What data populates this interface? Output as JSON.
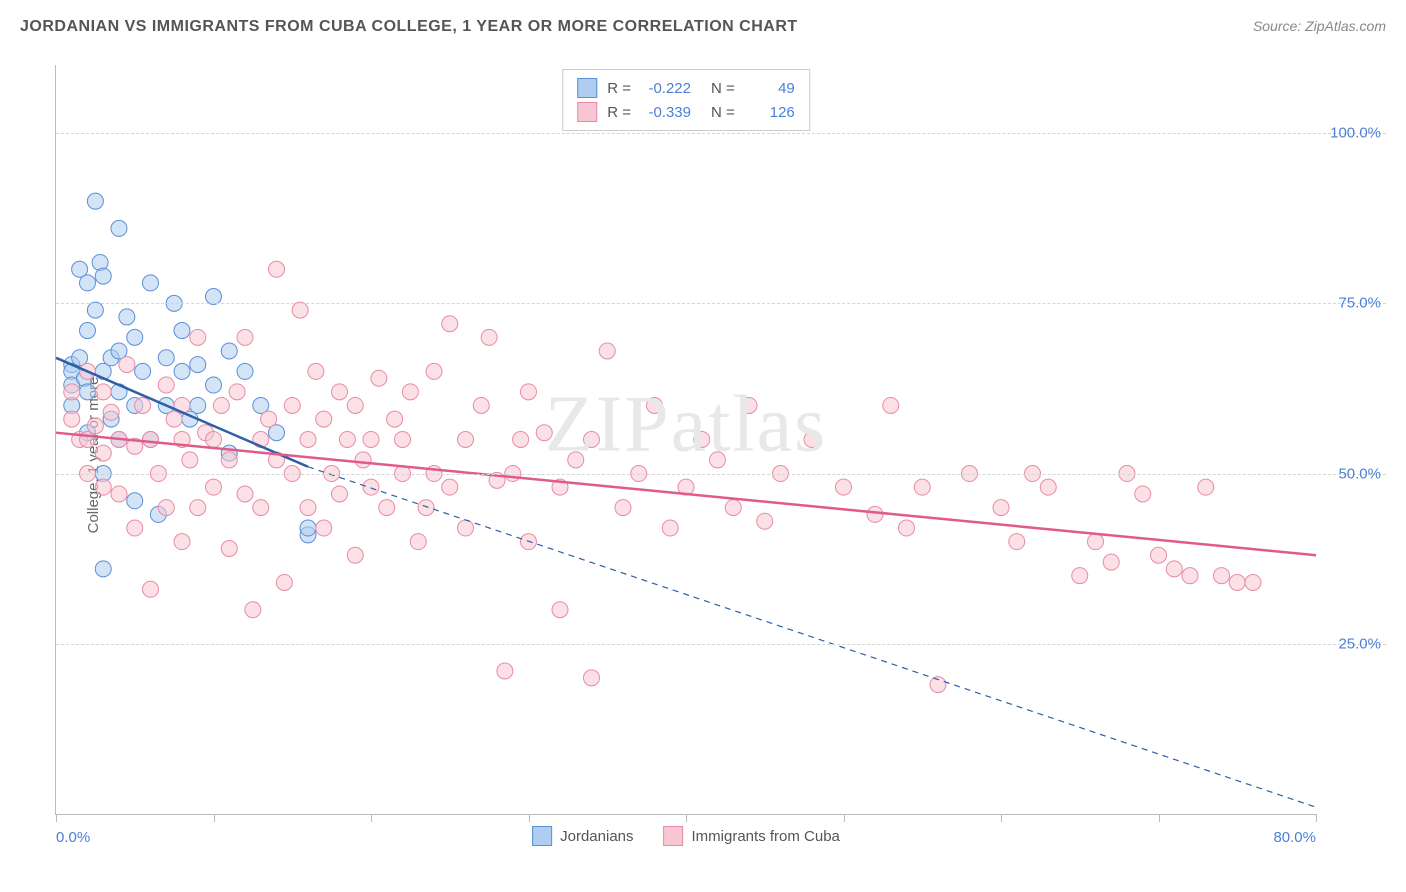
{
  "title": "JORDANIAN VS IMMIGRANTS FROM CUBA COLLEGE, 1 YEAR OR MORE CORRELATION CHART",
  "source": "Source: ZipAtlas.com",
  "watermark": "ZIPatlas",
  "y_axis_label": "College, 1 year or more",
  "chart": {
    "type": "scatter",
    "background_color": "#ffffff",
    "grid_color": "#d5d5d5",
    "axis_color": "#bbbbbb",
    "tick_label_color": "#4a7fd8",
    "xlim": [
      0,
      80
    ],
    "ylim": [
      0,
      110
    ],
    "x_ticks": [
      0,
      10,
      20,
      30,
      40,
      50,
      60,
      70,
      80
    ],
    "x_tick_labels": {
      "0": "0.0%",
      "80": "80.0%"
    },
    "y_gridlines": [
      25,
      50,
      75,
      100
    ],
    "y_tick_labels": {
      "25": "25.0%",
      "50": "50.0%",
      "75": "75.0%",
      "100": "100.0%"
    },
    "point_radius": 8,
    "point_opacity": 0.55,
    "line_width_solid": 2.5,
    "line_width_dashed": 1.2,
    "series": [
      {
        "name": "Jordanians",
        "label": "Jordanians",
        "color_fill": "#aecdf0",
        "color_stroke": "#5b8fd6",
        "color_line": "#2d5fa8",
        "R": "-0.222",
        "N": "49",
        "trend_start": [
          0,
          67
        ],
        "trend_end_solid": [
          16,
          51
        ],
        "trend_end_dashed": [
          80,
          1
        ],
        "points": [
          [
            1,
            66
          ],
          [
            1,
            65
          ],
          [
            1,
            63
          ],
          [
            1,
            60
          ],
          [
            1.5,
            67
          ],
          [
            1.5,
            80
          ],
          [
            1.8,
            64
          ],
          [
            2,
            78
          ],
          [
            2,
            71
          ],
          [
            2,
            62
          ],
          [
            2,
            56
          ],
          [
            2.5,
            90
          ],
          [
            2.5,
            74
          ],
          [
            2.8,
            81
          ],
          [
            3,
            36
          ],
          [
            3,
            50
          ],
          [
            3,
            65
          ],
          [
            3,
            79
          ],
          [
            3.5,
            58
          ],
          [
            3.5,
            67
          ],
          [
            4,
            86
          ],
          [
            4,
            68
          ],
          [
            4,
            62
          ],
          [
            4,
            55
          ],
          [
            4.5,
            73
          ],
          [
            5,
            70
          ],
          [
            5,
            46
          ],
          [
            5,
            60
          ],
          [
            5.5,
            65
          ],
          [
            6,
            78
          ],
          [
            6,
            55
          ],
          [
            6.5,
            44
          ],
          [
            7,
            67
          ],
          [
            7,
            60
          ],
          [
            7.5,
            75
          ],
          [
            8,
            71
          ],
          [
            8,
            65
          ],
          [
            8.5,
            58
          ],
          [
            9,
            66
          ],
          [
            9,
            60
          ],
          [
            10,
            76
          ],
          [
            10,
            63
          ],
          [
            11,
            53
          ],
          [
            11,
            68
          ],
          [
            12,
            65
          ],
          [
            13,
            60
          ],
          [
            14,
            56
          ],
          [
            16,
            41
          ],
          [
            16,
            42
          ]
        ]
      },
      {
        "name": "Immigrants from Cuba",
        "label": "Immigrants from Cuba",
        "color_fill": "#f7c6d2",
        "color_stroke": "#e88ba8",
        "color_line": "#e05a8a",
        "R": "-0.339",
        "N": "126",
        "trend_start": [
          0,
          56
        ],
        "trend_end_solid": [
          80,
          38
        ],
        "trend_end_dashed": [
          80,
          38
        ],
        "points": [
          [
            1,
            62
          ],
          [
            1,
            58
          ],
          [
            1.5,
            55
          ],
          [
            2,
            65
          ],
          [
            2,
            50
          ],
          [
            2,
            55
          ],
          [
            2.5,
            57
          ],
          [
            3,
            53
          ],
          [
            3,
            48
          ],
          [
            3,
            62
          ],
          [
            3.5,
            59
          ],
          [
            4,
            55
          ],
          [
            4,
            47
          ],
          [
            4.5,
            66
          ],
          [
            5,
            42
          ],
          [
            5,
            54
          ],
          [
            5.5,
            60
          ],
          [
            6,
            55
          ],
          [
            6,
            33
          ],
          [
            6.5,
            50
          ],
          [
            7,
            63
          ],
          [
            7,
            45
          ],
          [
            7.5,
            58
          ],
          [
            8,
            55
          ],
          [
            8,
            40
          ],
          [
            8,
            60
          ],
          [
            8.5,
            52
          ],
          [
            9,
            70
          ],
          [
            9,
            45
          ],
          [
            9.5,
            56
          ],
          [
            10,
            48
          ],
          [
            10,
            55
          ],
          [
            10.5,
            60
          ],
          [
            11,
            39
          ],
          [
            11,
            52
          ],
          [
            11.5,
            62
          ],
          [
            12,
            47
          ],
          [
            12,
            70
          ],
          [
            12.5,
            30
          ],
          [
            13,
            55
          ],
          [
            13,
            45
          ],
          [
            13.5,
            58
          ],
          [
            14,
            52
          ],
          [
            14,
            80
          ],
          [
            14.5,
            34
          ],
          [
            15,
            60
          ],
          [
            15,
            50
          ],
          [
            15.5,
            74
          ],
          [
            16,
            45
          ],
          [
            16,
            55
          ],
          [
            16.5,
            65
          ],
          [
            17,
            42
          ],
          [
            17,
            58
          ],
          [
            17.5,
            50
          ],
          [
            18,
            62
          ],
          [
            18,
            47
          ],
          [
            18.5,
            55
          ],
          [
            19,
            60
          ],
          [
            19,
            38
          ],
          [
            19.5,
            52
          ],
          [
            20,
            55
          ],
          [
            20,
            48
          ],
          [
            20.5,
            64
          ],
          [
            21,
            45
          ],
          [
            21.5,
            58
          ],
          [
            22,
            50
          ],
          [
            22,
            55
          ],
          [
            22.5,
            62
          ],
          [
            23,
            40
          ],
          [
            23.5,
            45
          ],
          [
            24,
            65
          ],
          [
            24,
            50
          ],
          [
            25,
            72
          ],
          [
            25,
            48
          ],
          [
            26,
            55
          ],
          [
            26,
            42
          ],
          [
            27,
            60
          ],
          [
            27.5,
            70
          ],
          [
            28,
            49
          ],
          [
            28.5,
            21
          ],
          [
            29,
            50
          ],
          [
            29.5,
            55
          ],
          [
            30,
            62
          ],
          [
            30,
            40
          ],
          [
            31,
            56
          ],
          [
            32,
            48
          ],
          [
            32,
            30
          ],
          [
            33,
            52
          ],
          [
            34,
            55
          ],
          [
            34,
            20
          ],
          [
            35,
            68
          ],
          [
            36,
            45
          ],
          [
            37,
            50
          ],
          [
            38,
            60
          ],
          [
            39,
            42
          ],
          [
            40,
            48
          ],
          [
            41,
            55
          ],
          [
            42,
            52
          ],
          [
            43,
            45
          ],
          [
            44,
            60
          ],
          [
            45,
            43
          ],
          [
            46,
            50
          ],
          [
            48,
            55
          ],
          [
            50,
            48
          ],
          [
            52,
            44
          ],
          [
            53,
            60
          ],
          [
            54,
            42
          ],
          [
            55,
            48
          ],
          [
            56,
            19
          ],
          [
            58,
            50
          ],
          [
            60,
            45
          ],
          [
            61,
            40
          ],
          [
            62,
            50
          ],
          [
            63,
            48
          ],
          [
            65,
            35
          ],
          [
            66,
            40
          ],
          [
            67,
            37
          ],
          [
            68,
            50
          ],
          [
            69,
            47
          ],
          [
            70,
            38
          ],
          [
            71,
            36
          ],
          [
            72,
            35
          ],
          [
            73,
            48
          ],
          [
            74,
            35
          ],
          [
            75,
            34
          ],
          [
            76,
            34
          ]
        ]
      }
    ]
  }
}
